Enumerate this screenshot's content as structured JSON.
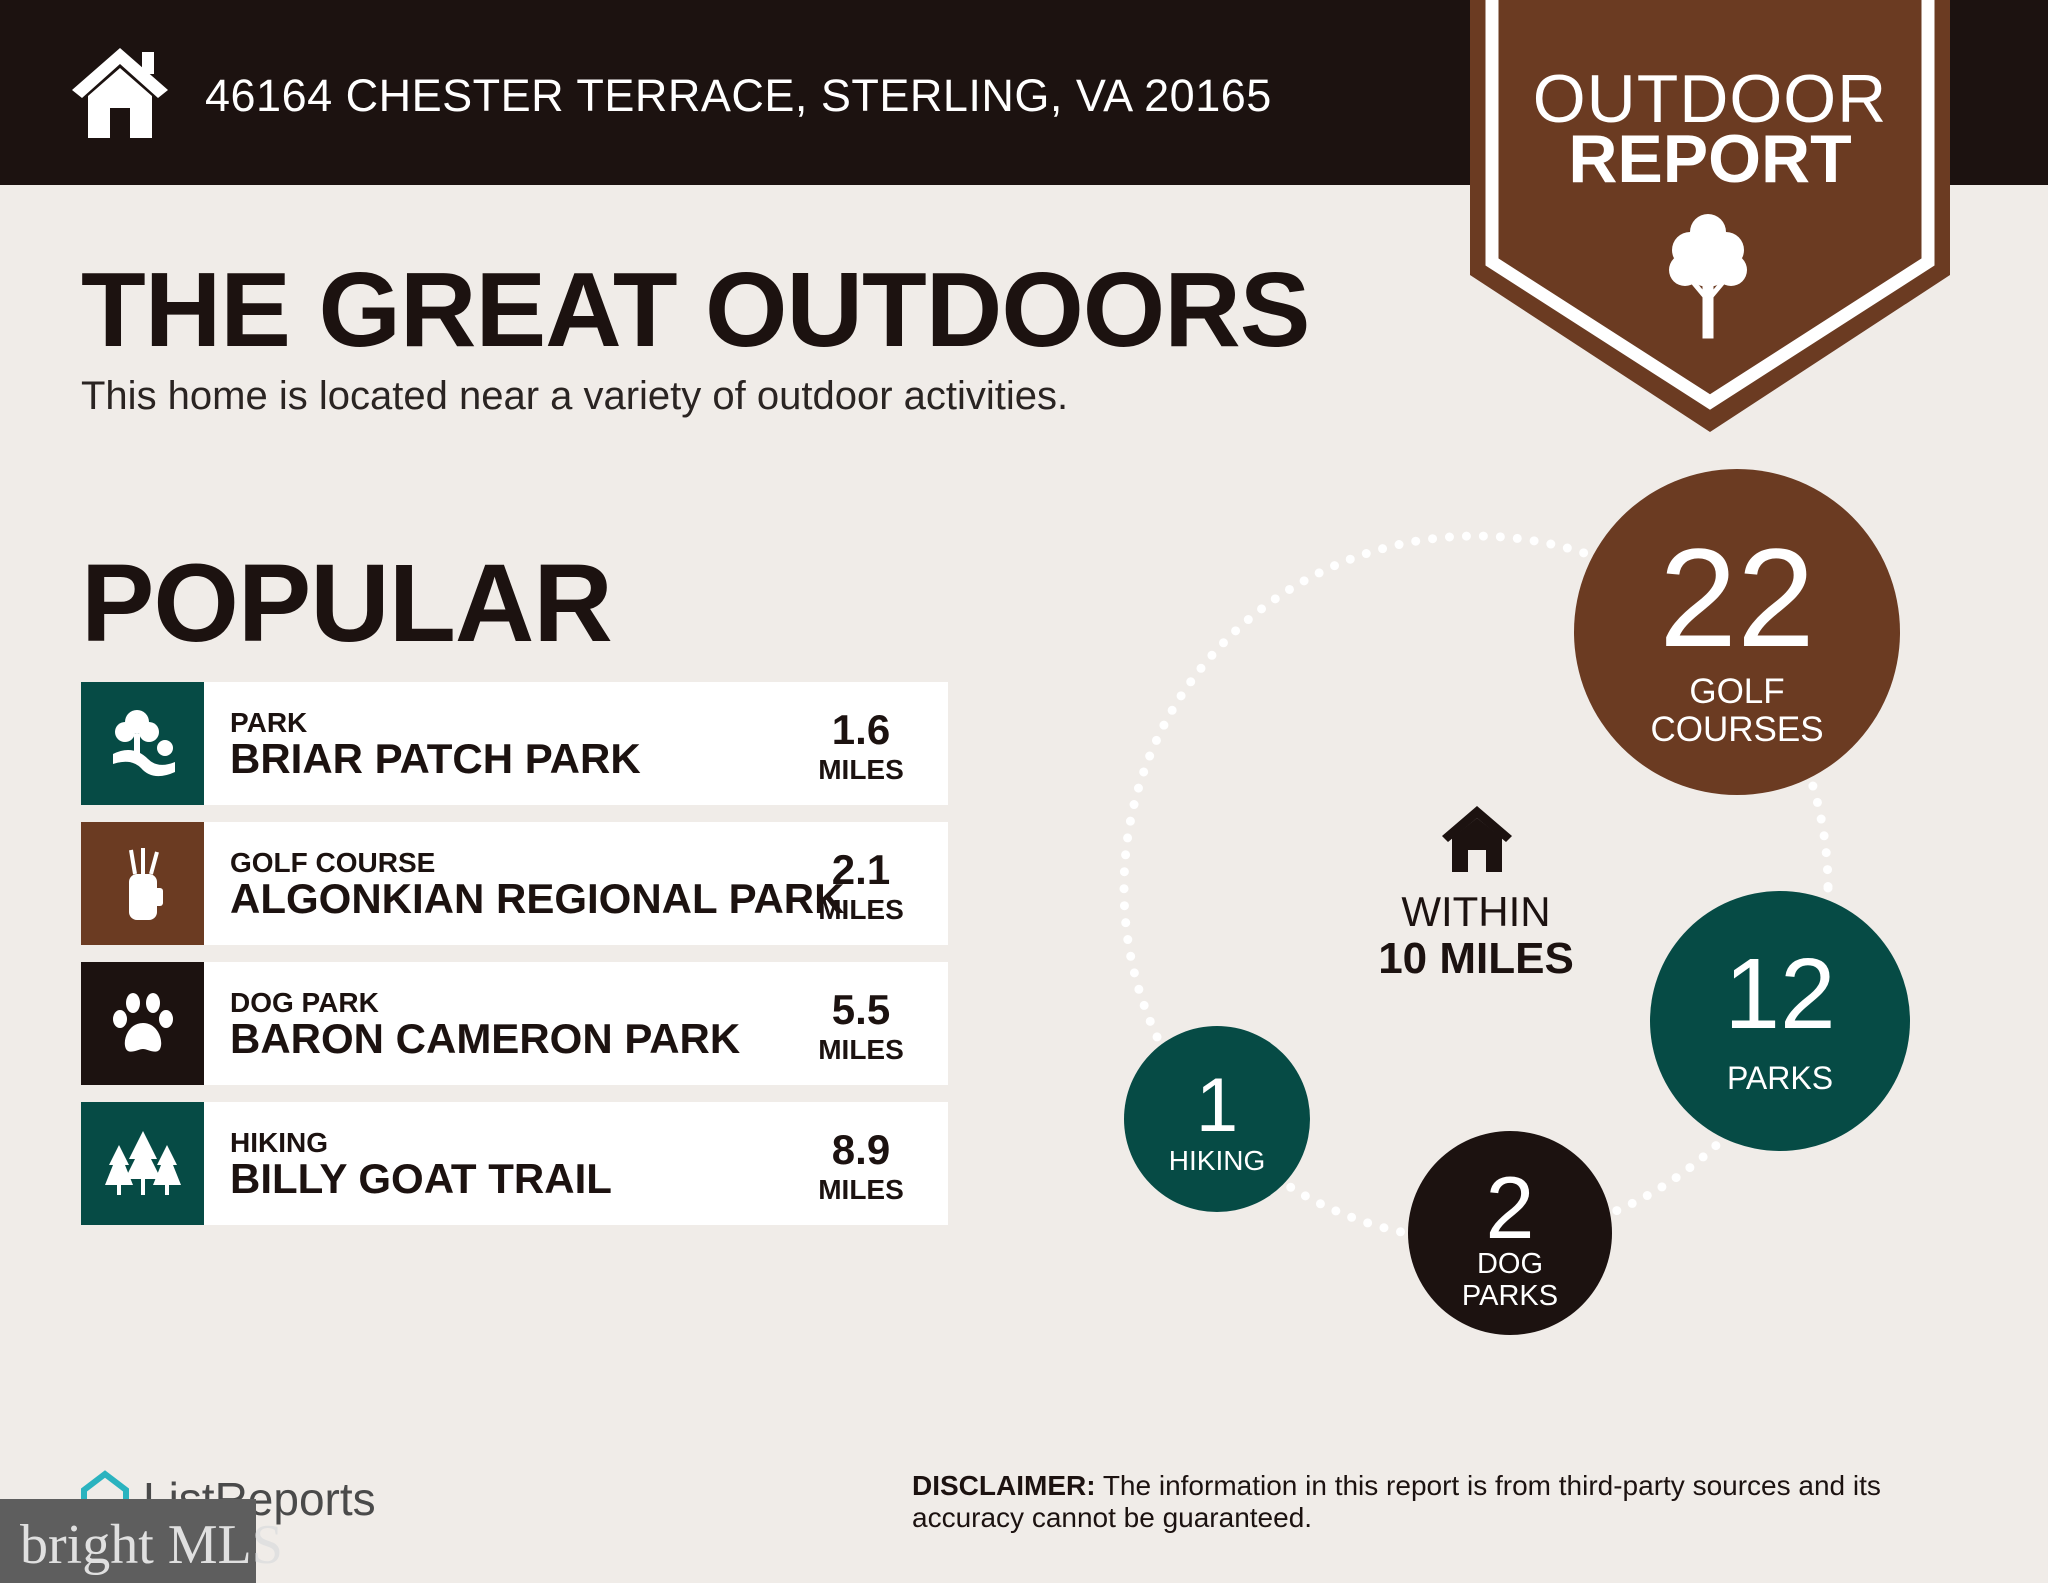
{
  "header": {
    "address": "46164 CHESTER TERRACE, STERLING, VA 20165",
    "icon": "house-icon"
  },
  "badge": {
    "line1": "OUTDOOR",
    "line2": "REPORT",
    "icon": "tree-icon",
    "color": "#6b3b22"
  },
  "title": "THE GREAT OUTDOORS",
  "subtitle": "This home is located near a variety of outdoor activities.",
  "popular": {
    "heading": "POPULAR",
    "items": [
      {
        "category": "PARK",
        "name": "BRIAR PATCH PARK",
        "distance": "1.6",
        "unit": "MILES",
        "icon": "park-icon",
        "color": "#064b45"
      },
      {
        "category": "GOLF COURSE",
        "name": "ALGONKIAN REGIONAL PARK",
        "distance": "2.1",
        "unit": "MILES",
        "icon": "golf-bag-icon",
        "color": "#6b3b22"
      },
      {
        "category": "DOG PARK",
        "name": "BARON CAMERON PARK",
        "distance": "5.5",
        "unit": "MILES",
        "icon": "paw-icon",
        "color": "#1c1210"
      },
      {
        "category": "HIKING",
        "name": "BILLY GOAT TRAIL",
        "distance": "8.9",
        "unit": "MILES",
        "icon": "pine-trees-icon",
        "color": "#064b45"
      }
    ]
  },
  "radius": {
    "line1": "WITHIN",
    "line2": "10 MILES",
    "counts": {
      "golf": {
        "value": "22",
        "label1": "GOLF",
        "label2": "COURSES",
        "color": "#6b3b22"
      },
      "parks": {
        "value": "12",
        "label1": "PARKS",
        "color": "#064b45"
      },
      "dog": {
        "value": "2",
        "label1": "DOG",
        "label2": "PARKS",
        "color": "#1c1210"
      },
      "hiking": {
        "value": "1",
        "label1": "HIKING",
        "color": "#064b45"
      }
    }
  },
  "footer": {
    "logo": "ListReports",
    "mls_logo": "bright MLS",
    "disclaimer_label": "DISCLAIMER:",
    "disclaimer_text": " The information in this report is from third-party sources and its accuracy cannot be guaranteed."
  }
}
